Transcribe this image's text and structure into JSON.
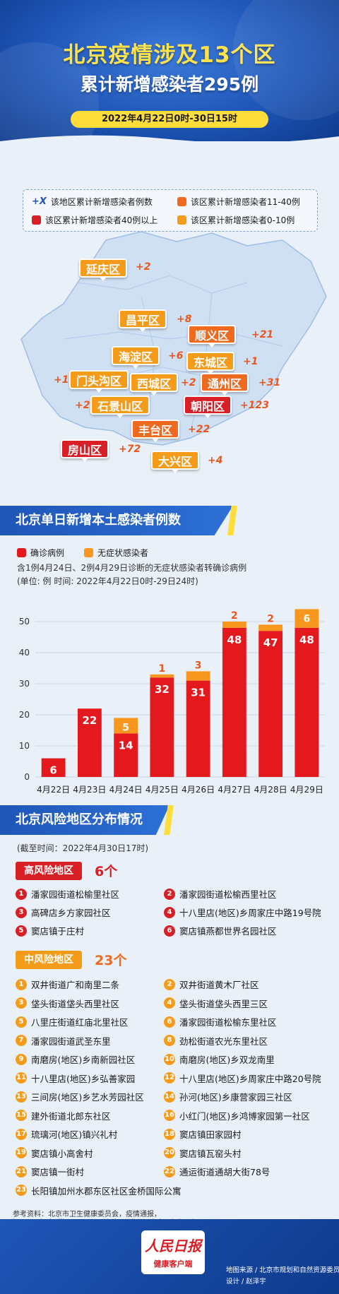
{
  "header": {
    "title": "北京疫情涉及13个区",
    "subtitle": "累计新增感染者295例",
    "date_range": "2022年4月22日0时-30日15时"
  },
  "legend": {
    "plus_symbol": "+X",
    "plus_label": "该地区累计新增感染者例数",
    "orange_label": "该区累计新增感染者11-40例",
    "red_label": "该区累计新增感染者40例以上",
    "yellow_label": "该区累计新增感染者0-10例"
  },
  "districts": [
    {
      "name": "延庆区",
      "count": "+2",
      "level": "yellow"
    },
    {
      "name": "昌平区",
      "count": "+8",
      "level": "yellow"
    },
    {
      "name": "顺义区",
      "count": "+21",
      "level": "orange"
    },
    {
      "name": "海淀区",
      "count": "+6",
      "level": "yellow"
    },
    {
      "name": "东城区",
      "count": "+1",
      "level": "yellow"
    },
    {
      "name": "门头沟区",
      "count": "+1",
      "level": "yellow"
    },
    {
      "name": "西城区",
      "count": "+2",
      "level": "yellow"
    },
    {
      "name": "通州区",
      "count": "+31",
      "level": "orange"
    },
    {
      "name": "石景山区",
      "count": "+2",
      "level": "yellow"
    },
    {
      "name": "朝阳区",
      "count": "+123",
      "level": "red"
    },
    {
      "name": "丰台区",
      "count": "+22",
      "level": "orange"
    },
    {
      "name": "房山区",
      "count": "+72",
      "level": "red"
    },
    {
      "name": "大兴区",
      "count": "+4",
      "level": "yellow"
    }
  ],
  "chart_section": {
    "title": "北京单日新增本土感染者例数",
    "legend_confirmed": "确诊病例",
    "legend_asymptomatic": "无症状感染者",
    "note1": "含1例4月24日、2例4月29日诊断的无症状感染者转确诊病例",
    "note2": "(单位: 例  时间: 2022年4月22日0时-29日24时)"
  },
  "chart_data": {
    "type": "bar",
    "stacked": true,
    "categories": [
      "4月22日",
      "4月23日",
      "4月24日",
      "4月25日",
      "4月26日",
      "4月27日",
      "4月28日",
      "4月29日"
    ],
    "series": [
      {
        "name": "确诊病例",
        "values": [
          6,
          22,
          14,
          32,
          31,
          48,
          47,
          48
        ],
        "color": "#e3191e"
      },
      {
        "name": "无症状感染者",
        "values": [
          0,
          0,
          5,
          1,
          3,
          2,
          2,
          6
        ],
        "color": "#f8971d"
      }
    ],
    "ylim": [
      0,
      55
    ],
    "yticks": [
      0,
      10,
      20,
      30,
      40,
      50
    ],
    "grid": true
  },
  "risk_section": {
    "title": "北京风险地区分布情况",
    "cutoff": "(截至时间：2022年4月30日17时)",
    "high_tag": "高风险地区",
    "high_count": "6个",
    "high_areas": [
      "潘家园街道松榆里社区",
      "潘家园街道松榆西里社区",
      "高碑店乡方家园社区",
      "十八里店(地区)乡周家庄中路19号院",
      "窦店镇于庄村",
      "窦店镇燕都世界名园社区"
    ],
    "mid_tag": "中风险地区",
    "mid_count": "23个",
    "mid_areas": [
      "双井街道广和南里二条",
      "双井街道黄木厂社区",
      "垡头街道垡头西里社区",
      "垡头街道垡头西里三区",
      "八里庄街道红庙北里社区",
      "潘家园街道松榆东里社区",
      "潘家园街道武圣东里",
      "劲松街道农光东里社区",
      "南磨房(地区)乡南新园社区",
      "南磨房(地区)乡双龙南里",
      "十八里店(地区)乡弘善家园",
      "十八里店(地区)乡周家庄中路20号院",
      "三间房(地区)乡艺水芳园社区",
      "孙河(地区)乡康营家园三社区",
      "建外街道北郎东社区",
      "小红门(地区)乡鸿博家园第一社区",
      "琉璃河(地区)镇兴礼村",
      "窦店镇田家园村",
      "窦店镇小高舍村",
      "窦店镇瓦窑头村",
      "窦店镇一街村",
      "通运街道通胡大街78号",
      "长阳镇加州水郡东区社区金桥国际公寓"
    ]
  },
  "reference": "参考资料：北京市卫生健康委员会，疫情通报，http://wjw.beijing.gov.cn/wjwh/ztzl/xxgzbd/gzbdyqtb/",
  "footer": {
    "logo_main": "人民日报",
    "logo_sub": "健康客户端",
    "credit1": "地图来源 / 北京市规划和自然资源委员会",
    "credit2": "设计 / 赵泽宇"
  },
  "colors": {
    "primary_blue": "#1f56b8",
    "red": "#d81f26",
    "orange": "#ee6a1f",
    "yellow": "#f59b1a"
  }
}
